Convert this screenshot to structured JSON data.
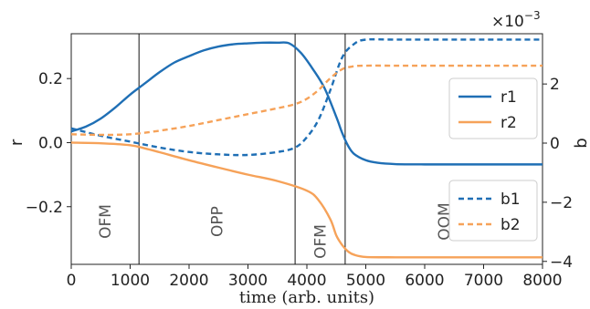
{
  "chart_data": {
    "type": "line",
    "xlabel": "time (arb. units)",
    "ylabel_left": "r",
    "ylabel_right": "b",
    "right_axis_multiplier": "×10",
    "right_axis_exponent": "−3",
    "xlim": [
      0,
      8000
    ],
    "ylim_left": [
      -0.38,
      0.34
    ],
    "ylim_right": [
      -4.1,
      3.7
    ],
    "x_ticks": [
      0,
      1000,
      2000,
      3000,
      4000,
      5000,
      6000,
      7000,
      8000
    ],
    "x_tick_labels": [
      "0",
      "1000",
      "2000",
      "3000",
      "4000",
      "5000",
      "6000",
      "7000",
      "8000"
    ],
    "left_ticks": [
      0.2,
      0.0,
      -0.2
    ],
    "left_tick_labels": [
      "0.2",
      "0.0",
      "−0.2"
    ],
    "right_ticks": [
      2,
      0,
      -2,
      -4
    ],
    "right_tick_labels": [
      "2",
      "0",
      "−2",
      "−4"
    ],
    "grid": false,
    "regions": [
      {
        "label": "OFM",
        "x_start": 0,
        "x_end": 1150
      },
      {
        "label": "OPP",
        "x_start": 1150,
        "x_end": 3800
      },
      {
        "label": "OFM",
        "x_start": 3800,
        "x_end": 4650
      },
      {
        "label": "OOM",
        "x_start": 4650,
        "x_end": 8000
      }
    ],
    "region_boundaries": [
      1150,
      3800,
      4650
    ],
    "legend_top": {
      "placement": "right",
      "entries": [
        "r1",
        "r2"
      ]
    },
    "legend_bottom": {
      "placement": "lower-right",
      "entries": [
        "b1",
        "b2"
      ]
    },
    "series": [
      {
        "name": "r1",
        "axis": "left",
        "style": "solid",
        "color": "#1f6fb5",
        "x": [
          0,
          250,
          500,
          750,
          1000,
          1250,
          1500,
          1750,
          2000,
          2250,
          2500,
          2750,
          3000,
          3250,
          3500,
          3700,
          3900,
          4100,
          4300,
          4500,
          4600,
          4700,
          4800,
          5000,
          5200,
          5500,
          6000,
          7000,
          8000
        ],
        "y": [
          0.035,
          0.05,
          0.075,
          0.11,
          0.15,
          0.185,
          0.22,
          0.25,
          0.27,
          0.288,
          0.3,
          0.307,
          0.31,
          0.312,
          0.312,
          0.31,
          0.28,
          0.23,
          0.17,
          0.08,
          0.03,
          -0.01,
          -0.035,
          -0.055,
          -0.063,
          -0.067,
          -0.068,
          -0.068,
          -0.068
        ]
      },
      {
        "name": "r2",
        "axis": "left",
        "style": "solid",
        "color": "#f6a259",
        "x": [
          0,
          500,
          1000,
          1250,
          1500,
          2000,
          2500,
          3000,
          3500,
          4000,
          4200,
          4400,
          4500,
          4600,
          4700,
          4800,
          5000,
          5500,
          6000,
          7000,
          8000
        ],
        "y": [
          0.0,
          -0.002,
          -0.008,
          -0.018,
          -0.03,
          -0.055,
          -0.078,
          -0.1,
          -0.12,
          -0.15,
          -0.18,
          -0.24,
          -0.29,
          -0.32,
          -0.34,
          -0.35,
          -0.357,
          -0.358,
          -0.358,
          -0.358,
          -0.358
        ]
      },
      {
        "name": "b1",
        "axis": "right",
        "style": "dashed",
        "color": "#1f6fb5",
        "x": [
          0,
          500,
          1000,
          1500,
          2000,
          2500,
          3000,
          3500,
          3800,
          4000,
          4200,
          4400,
          4600,
          4800,
          5000,
          5500,
          6000,
          7000,
          8000
        ],
        "y": [
          0.5,
          0.25,
          0.05,
          -0.15,
          -0.3,
          -0.38,
          -0.4,
          -0.3,
          -0.15,
          0.2,
          0.8,
          1.8,
          2.9,
          3.35,
          3.5,
          3.5,
          3.5,
          3.5,
          3.5
        ]
      },
      {
        "name": "b2",
        "axis": "right",
        "style": "dashed",
        "color": "#f6a259",
        "x": [
          0,
          500,
          1000,
          1500,
          2000,
          2500,
          3000,
          3500,
          3800,
          4000,
          4200,
          4400,
          4600,
          4800,
          5000,
          5500,
          6000,
          7000,
          8000
        ],
        "y": [
          0.3,
          0.28,
          0.3,
          0.42,
          0.58,
          0.78,
          0.98,
          1.18,
          1.32,
          1.5,
          1.8,
          2.2,
          2.5,
          2.6,
          2.62,
          2.62,
          2.62,
          2.62,
          2.62
        ]
      }
    ]
  }
}
